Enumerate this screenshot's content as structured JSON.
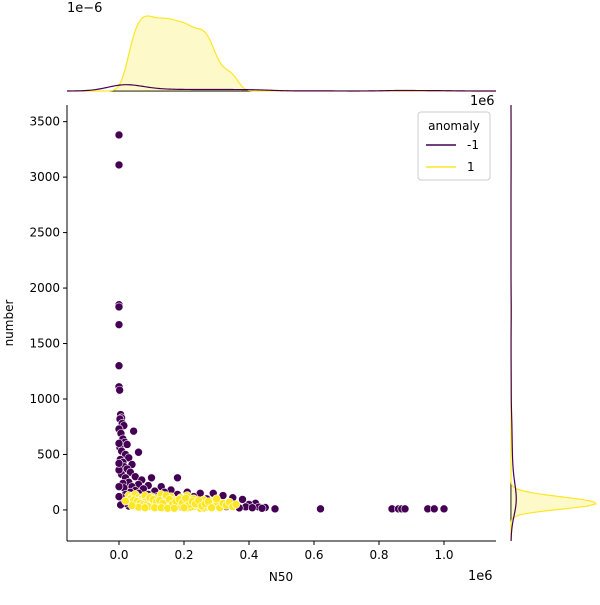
{
  "chart_data": {
    "type": "scatter",
    "subtype": "jointplot",
    "xlabel": "N50",
    "ylabel": "number",
    "x_offset_text": "1e6",
    "y_offset_text_top": "1e6",
    "top_marginal_offset_text": "1e−6",
    "xlim": [
      -0.16,
      1.16
    ],
    "ylim": [
      -280,
      3650
    ],
    "x_ticks": [
      0.0,
      0.2,
      0.4,
      0.6,
      0.8,
      1.0
    ],
    "x_tick_labels": [
      "0.0",
      "0.2",
      "0.4",
      "0.6",
      "0.8",
      "1.0"
    ],
    "y_ticks": [
      0,
      500,
      1000,
      1500,
      2000,
      2500,
      3000,
      3500
    ],
    "y_tick_labels": [
      "0",
      "500",
      "1000",
      "1500",
      "2000",
      "2500",
      "3000",
      "3500"
    ],
    "legend": {
      "title": "anomaly",
      "placement": "top-right",
      "entries": [
        {
          "label": "-1",
          "color": "#440154"
        },
        {
          "label": "1",
          "color": "#fde725"
        }
      ]
    },
    "series": [
      {
        "name": "-1",
        "color": "#440154",
        "points": [
          [
            0.0,
            3380
          ],
          [
            0.0,
            3110
          ],
          [
            0.0,
            1850
          ],
          [
            0.0,
            1830
          ],
          [
            0.0,
            1670
          ],
          [
            0.0,
            1300
          ],
          [
            0.0,
            1110
          ],
          [
            0.002,
            1080
          ],
          [
            0.005,
            860
          ],
          [
            0.008,
            830
          ],
          [
            0.003,
            820
          ],
          [
            0.01,
            780
          ],
          [
            0.015,
            760
          ],
          [
            0.0,
            730
          ],
          [
            0.045,
            710
          ],
          [
            0.006,
            690
          ],
          [
            0.012,
            640
          ],
          [
            0.018,
            610
          ],
          [
            0.025,
            590
          ],
          [
            0.003,
            560
          ],
          [
            0.008,
            530
          ],
          [
            0.06,
            520
          ],
          [
            0.02,
            500
          ],
          [
            0.03,
            470
          ],
          [
            0.004,
            455
          ],
          [
            0.012,
            430
          ],
          [
            0.04,
            410
          ],
          [
            0.016,
            390
          ],
          [
            0.025,
            370
          ],
          [
            0.035,
            340
          ],
          [
            0.008,
            320
          ],
          [
            0.05,
            300
          ],
          [
            0.02,
            290
          ],
          [
            0.1,
            290
          ],
          [
            0.18,
            290
          ],
          [
            0.07,
            270
          ],
          [
            0.03,
            250
          ],
          [
            0.012,
            240
          ],
          [
            0.06,
            230
          ],
          [
            0.09,
            220
          ],
          [
            0.04,
            210
          ],
          [
            0.13,
            210
          ],
          [
            0.015,
            200
          ],
          [
            0.075,
            190
          ],
          [
            0.16,
            180
          ],
          [
            0.05,
            175
          ],
          [
            0.11,
            170
          ],
          [
            0.035,
            160
          ],
          [
            0.14,
            160
          ],
          [
            0.21,
            160
          ],
          [
            0.06,
            150
          ],
          [
            0.25,
            150
          ],
          [
            0.29,
            150
          ],
          [
            0.02,
            140
          ],
          [
            0.09,
            140
          ],
          [
            0.18,
            140
          ],
          [
            0.32,
            130
          ],
          [
            0.045,
            130
          ],
          [
            0.12,
            125
          ],
          [
            0.23,
            120
          ],
          [
            0.35,
            110
          ],
          [
            0.01,
            110
          ],
          [
            0.07,
            110
          ],
          [
            0.15,
            105
          ],
          [
            0.27,
            100
          ],
          [
            0.38,
            95
          ],
          [
            0.1,
            90
          ],
          [
            0.2,
            85
          ],
          [
            0.3,
            80
          ],
          [
            0.05,
            75
          ],
          [
            0.24,
            70
          ],
          [
            0.34,
            65
          ],
          [
            0.42,
            60
          ],
          [
            0.13,
            55
          ],
          [
            0.4,
            50
          ],
          [
            0.28,
            45
          ],
          [
            0.36,
            40
          ],
          [
            0.03,
            35
          ],
          [
            0.19,
            30
          ],
          [
            0.33,
            30
          ],
          [
            0.39,
            28
          ],
          [
            0.43,
            26
          ],
          [
            0.45,
            22
          ],
          [
            0.41,
            20
          ],
          [
            0.37,
            18
          ],
          [
            0.44,
            15
          ],
          [
            0.48,
            10
          ],
          [
            0.22,
            25
          ],
          [
            0.31,
            20
          ],
          [
            0.26,
            15
          ],
          [
            0.62,
            10
          ],
          [
            0.84,
            10
          ],
          [
            0.86,
            10
          ],
          [
            0.87,
            10
          ],
          [
            0.88,
            10
          ],
          [
            0.95,
            10
          ],
          [
            0.97,
            10
          ],
          [
            1.0,
            10
          ],
          [
            0.02,
            60
          ],
          [
            0.005,
            45
          ],
          [
            0.0,
            120
          ],
          [
            0.0,
            210
          ],
          [
            0.0,
            360
          ],
          [
            0.0,
            420
          ],
          [
            0.0,
            600
          ]
        ]
      },
      {
        "name": "1",
        "color": "#fde725",
        "points": [
          [
            0.03,
            130
          ],
          [
            0.04,
            120
          ],
          [
            0.05,
            140
          ],
          [
            0.06,
            110
          ],
          [
            0.07,
            100
          ],
          [
            0.08,
            130
          ],
          [
            0.09,
            90
          ],
          [
            0.1,
            120
          ],
          [
            0.11,
            80
          ],
          [
            0.12,
            110
          ],
          [
            0.13,
            140
          ],
          [
            0.14,
            100
          ],
          [
            0.15,
            70
          ],
          [
            0.16,
            120
          ],
          [
            0.17,
            90
          ],
          [
            0.18,
            60
          ],
          [
            0.19,
            110
          ],
          [
            0.2,
            80
          ],
          [
            0.21,
            130
          ],
          [
            0.22,
            50
          ],
          [
            0.23,
            100
          ],
          [
            0.24,
            70
          ],
          [
            0.25,
            40
          ],
          [
            0.26,
            90
          ],
          [
            0.27,
            60
          ],
          [
            0.28,
            30
          ],
          [
            0.29,
            80
          ],
          [
            0.3,
            50
          ],
          [
            0.31,
            20
          ],
          [
            0.32,
            60
          ],
          [
            0.05,
            60
          ],
          [
            0.07,
            40
          ],
          [
            0.09,
            55
          ],
          [
            0.11,
            35
          ],
          [
            0.13,
            45
          ],
          [
            0.15,
            30
          ],
          [
            0.17,
            25
          ],
          [
            0.19,
            40
          ],
          [
            0.21,
            20
          ],
          [
            0.23,
            30
          ],
          [
            0.25,
            15
          ],
          [
            0.27,
            25
          ],
          [
            0.06,
            80
          ],
          [
            0.08,
            70
          ],
          [
            0.1,
            60
          ],
          [
            0.12,
            50
          ],
          [
            0.14,
            65
          ],
          [
            0.16,
            45
          ],
          [
            0.18,
            35
          ],
          [
            0.2,
            55
          ],
          [
            0.22,
            25
          ],
          [
            0.24,
            45
          ],
          [
            0.26,
            20
          ],
          [
            0.28,
            40
          ],
          [
            0.035,
            100
          ],
          [
            0.045,
            90
          ],
          [
            0.055,
            75
          ],
          [
            0.065,
            60
          ],
          [
            0.075,
            50
          ],
          [
            0.085,
            45
          ],
          [
            0.095,
            110
          ],
          [
            0.105,
            95
          ],
          [
            0.115,
            70
          ],
          [
            0.125,
            85
          ],
          [
            0.135,
            60
          ],
          [
            0.145,
            130
          ],
          [
            0.155,
            95
          ],
          [
            0.165,
            55
          ],
          [
            0.175,
            75
          ],
          [
            0.185,
            95
          ],
          [
            0.195,
            65
          ],
          [
            0.205,
            105
          ],
          [
            0.215,
            45
          ],
          [
            0.225,
            75
          ],
          [
            0.235,
            55
          ],
          [
            0.245,
            85
          ],
          [
            0.255,
            35
          ],
          [
            0.265,
            55
          ],
          [
            0.275,
            75
          ],
          [
            0.285,
            20
          ],
          [
            0.3,
            100
          ],
          [
            0.33,
            40
          ],
          [
            0.34,
            70
          ],
          [
            0.35,
            30
          ],
          [
            0.36,
            50
          ],
          [
            0.09,
            30
          ],
          [
            0.11,
            20
          ],
          [
            0.13,
            20
          ],
          [
            0.15,
            15
          ],
          [
            0.17,
            15
          ],
          [
            0.2,
            20
          ],
          [
            0.06,
            25
          ],
          [
            0.08,
            20
          ],
          [
            0.04,
            40
          ],
          [
            0.02,
            80
          ]
        ]
      }
    ]
  }
}
